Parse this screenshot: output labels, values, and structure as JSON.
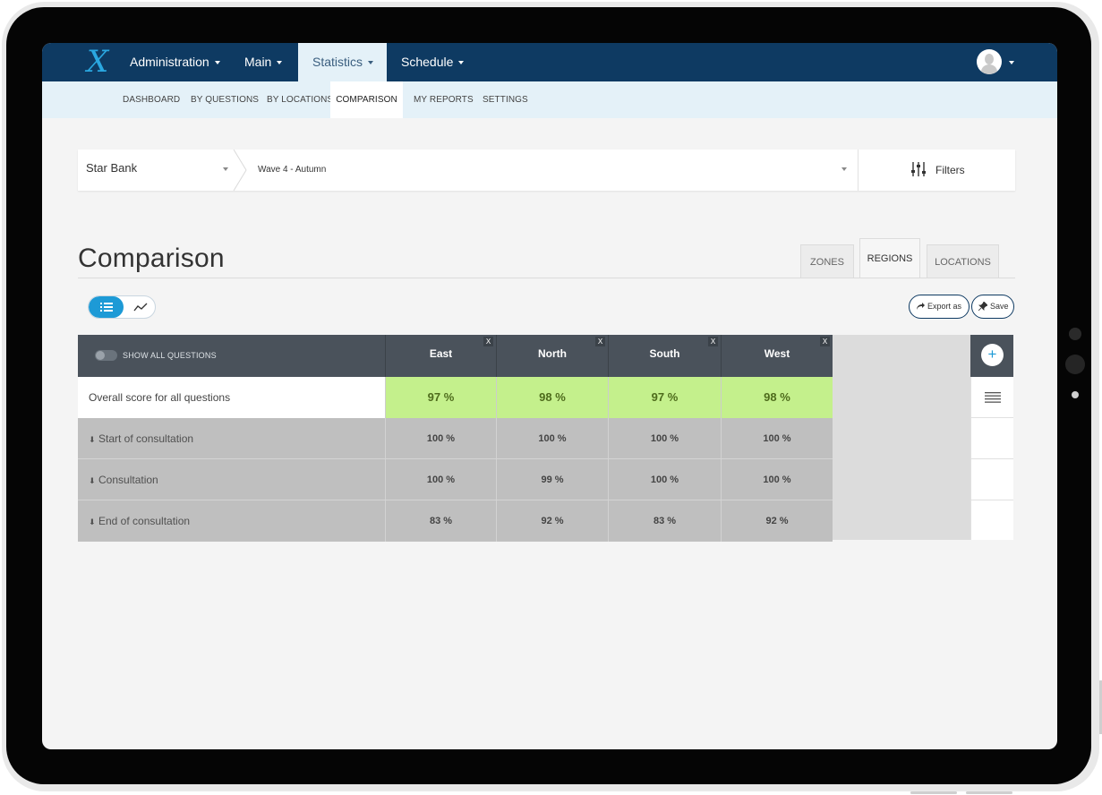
{
  "topnav": {
    "logo": "X",
    "items": [
      {
        "label": "Administration"
      },
      {
        "label": "Main"
      },
      {
        "label": "Statistics"
      },
      {
        "label": "Schedule"
      }
    ]
  },
  "subnav": {
    "items": [
      {
        "label": "DASHBOARD"
      },
      {
        "label": "BY QUESTIONS"
      },
      {
        "label": "BY LOCATIONS"
      },
      {
        "label": "COMPARISON"
      },
      {
        "label": "MY REPORTS"
      },
      {
        "label": "SETTINGS"
      }
    ],
    "active": "COMPARISON"
  },
  "selector": {
    "company": "Star Bank",
    "wave": "Wave 4 - Autumn",
    "filters_label": "Filters"
  },
  "page": {
    "title": "Comparison",
    "tabs": [
      {
        "label": "ZONES"
      },
      {
        "label": "REGIONS"
      },
      {
        "label": "LOCATIONS"
      }
    ],
    "active_tab": "REGIONS"
  },
  "actions": {
    "export_label": "Export as",
    "save_label": "Save"
  },
  "table": {
    "show_all_label": "SHOW ALL QUESTIONS",
    "close_glyph": "X",
    "columns": [
      {
        "label": "East"
      },
      {
        "label": "North"
      },
      {
        "label": "South"
      },
      {
        "label": "West"
      }
    ],
    "overall": {
      "label": "Overall score for all questions",
      "values": [
        "97 %",
        "98 %",
        "97 %",
        "98 %"
      ]
    },
    "rows": [
      {
        "label": "Start of consultation",
        "values": [
          "100 %",
          "100 %",
          "100 %",
          "100 %"
        ]
      },
      {
        "label": "Consultation",
        "values": [
          "100 %",
          "99 %",
          "100 %",
          "100 %"
        ]
      },
      {
        "label": "End of consultation",
        "values": [
          "83 %",
          "92 %",
          "83 %",
          "92 %"
        ]
      }
    ],
    "add_glyph": "+",
    "expand_glyph": "⬇"
  },
  "colors": {
    "nav_bg": "#0e3a62",
    "subnav_bg": "#e4f1f8",
    "accent": "#1d9ad6",
    "overall_highlight": "#c4f08c",
    "table_header": "#4a525b"
  },
  "icons": {
    "filters": "sliders-icon",
    "list_view": "list-icon",
    "chart_view": "trend-line-icon",
    "export": "share-arrow-icon",
    "save": "pin-icon",
    "add": "plus-icon",
    "menu": "hamburger-icon",
    "expand": "double-chevron-down-icon"
  }
}
